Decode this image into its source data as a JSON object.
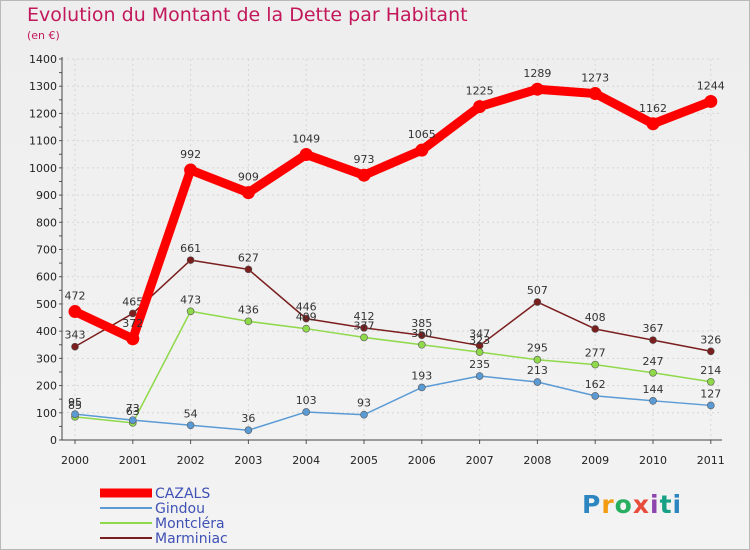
{
  "title": "Evolution du Montant de la Dette par Habitant",
  "unit": "(en €)",
  "brand": "Proxiti",
  "chart_data": {
    "type": "line",
    "x": [
      "2000",
      "2001",
      "2002",
      "2003",
      "2004",
      "2005",
      "2006",
      "2007",
      "2008",
      "2009",
      "2010",
      "2011"
    ],
    "ylim": [
      0,
      1400
    ],
    "yticks": [
      0,
      100,
      200,
      300,
      400,
      500,
      600,
      700,
      800,
      900,
      1000,
      1100,
      1200,
      1300,
      1400
    ],
    "grid": true,
    "legend_position": "bottom-left",
    "series": [
      {
        "name": "CAZALS",
        "color": "#ff0000",
        "values": [
          472,
          372,
          992,
          909,
          1049,
          973,
          1065,
          1225,
          1289,
          1273,
          1162,
          1244
        ]
      },
      {
        "name": "Gindou",
        "color": "#5b9bd5",
        "values": [
          95,
          73,
          54,
          36,
          103,
          93,
          193,
          235,
          213,
          162,
          144,
          127
        ]
      },
      {
        "name": "Montcléra",
        "color": "#8fd94a",
        "values": [
          85,
          63,
          473,
          436,
          409,
          377,
          350,
          323,
          295,
          277,
          247,
          214
        ]
      },
      {
        "name": "Marminiac",
        "color": "#7a1e1e",
        "values": [
          343,
          465,
          661,
          627,
          446,
          412,
          385,
          347,
          507,
          408,
          367,
          326
        ]
      }
    ]
  }
}
